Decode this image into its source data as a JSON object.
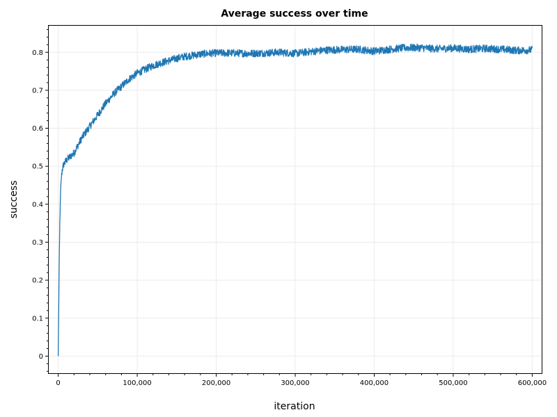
{
  "chart_data": {
    "type": "line",
    "title": "Average success over time",
    "xlabel": "iteration",
    "ylabel": "success",
    "xlim": [
      -12000,
      612000
    ],
    "ylim": [
      -0.045,
      0.87
    ],
    "x_ticks": [
      0,
      100000,
      200000,
      300000,
      400000,
      500000,
      600000
    ],
    "x_tick_labels": [
      "0",
      "100,000",
      "200,000",
      "300,000",
      "400,000",
      "500,000",
      "600,000"
    ],
    "y_ticks": [
      0,
      0.1,
      0.2,
      0.3,
      0.4,
      0.5,
      0.6,
      0.7,
      0.8
    ],
    "y_tick_labels": [
      "0",
      "0.1",
      "0.2",
      "0.3",
      "0.4",
      "0.5",
      "0.6",
      "0.7",
      "0.8"
    ],
    "grid": true,
    "legend": "none",
    "series": [
      {
        "color": "#1f77b4",
        "x": [
          0,
          1000,
          2000,
          3000,
          4000,
          5000,
          7000,
          10000,
          15000,
          20000,
          25000,
          30000,
          40000,
          50000,
          60000,
          70000,
          80000,
          90000,
          100000,
          110000,
          120000,
          130000,
          140000,
          150000,
          160000,
          170000,
          180000,
          190000,
          200000,
          220000,
          240000,
          260000,
          280000,
          300000,
          320000,
          340000,
          360000,
          380000,
          400000,
          420000,
          440000,
          460000,
          480000,
          500000,
          520000,
          540000,
          560000,
          580000,
          600000
        ],
        "y": [
          0.0,
          0.2,
          0.35,
          0.43,
          0.47,
          0.49,
          0.505,
          0.515,
          0.525,
          0.535,
          0.555,
          0.575,
          0.605,
          0.635,
          0.665,
          0.69,
          0.71,
          0.73,
          0.745,
          0.755,
          0.765,
          0.772,
          0.778,
          0.784,
          0.789,
          0.792,
          0.795,
          0.797,
          0.798,
          0.798,
          0.797,
          0.798,
          0.8,
          0.797,
          0.802,
          0.806,
          0.807,
          0.808,
          0.803,
          0.808,
          0.812,
          0.812,
          0.809,
          0.811,
          0.808,
          0.81,
          0.808,
          0.805,
          0.806
        ]
      }
    ]
  }
}
